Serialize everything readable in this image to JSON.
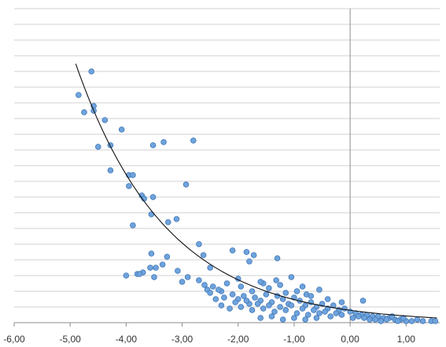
{
  "chart_data": {
    "type": "scatter",
    "title": "",
    "xlabel": "",
    "ylabel": "",
    "xlim": [
      -6.0,
      1.6
    ],
    "ylim": [
      0,
      20
    ],
    "x_ticks": [
      -6.0,
      -5.0,
      -4.0,
      -3.0,
      -2.0,
      -1.0,
      0.0,
      1.0
    ],
    "x_tick_labels": [
      "-6,00",
      "-5,00",
      "-4,00",
      "-3,00",
      "-2,00",
      "-1,00",
      "0,00",
      "1,00"
    ],
    "y_grid_step": 1,
    "grid": "horizontal",
    "legend": "none",
    "trendline": {
      "type": "exponential",
      "a": 0.79,
      "b": 0.62,
      "x_range": [
        -4.9,
        1.55
      ]
    },
    "colors": {
      "point_fill": "#6fa3dc",
      "point_edge": "#3f77b8",
      "trendline": "#111111",
      "grid": "#d0d0d0",
      "axis": "#8c8c8c"
    },
    "series": [
      {
        "points": [
          [
            -4.62,
            16.0
          ],
          [
            -4.85,
            14.5
          ],
          [
            -4.75,
            13.4
          ],
          [
            -4.58,
            13.8
          ],
          [
            -4.58,
            13.5
          ],
          [
            -4.38,
            12.9
          ],
          [
            -4.08,
            12.3
          ],
          [
            -4.5,
            11.2
          ],
          [
            -4.28,
            11.3
          ],
          [
            -3.52,
            11.3
          ],
          [
            -3.33,
            11.5
          ],
          [
            -2.8,
            11.6
          ],
          [
            -4.28,
            9.7
          ],
          [
            -3.95,
            9.4
          ],
          [
            -3.88,
            9.4
          ],
          [
            -3.95,
            8.7
          ],
          [
            -2.93,
            8.8
          ],
          [
            -3.72,
            8.1
          ],
          [
            -3.68,
            7.9
          ],
          [
            -3.52,
            8.0
          ],
          [
            -3.55,
            6.9
          ],
          [
            -3.1,
            6.6
          ],
          [
            -3.25,
            6.4
          ],
          [
            -3.88,
            6.2
          ],
          [
            -2.7,
            5.0
          ],
          [
            -3.55,
            4.4
          ],
          [
            -3.27,
            4.2
          ],
          [
            -2.62,
            4.3
          ],
          [
            -2.1,
            4.6
          ],
          [
            -1.85,
            4.5
          ],
          [
            -1.72,
            4.3
          ],
          [
            -1.8,
            3.9
          ],
          [
            -1.3,
            4.1
          ],
          [
            -2.5,
            3.5
          ],
          [
            -3.57,
            3.5
          ],
          [
            -3.47,
            3.5
          ],
          [
            -3.08,
            3.3
          ],
          [
            -3.35,
            3.7
          ],
          [
            -2.9,
            2.9
          ],
          [
            -3.7,
            3.2
          ],
          [
            -3.8,
            3.1
          ],
          [
            -3.76,
            3.1
          ],
          [
            -4.0,
            3.0
          ],
          [
            -3.5,
            2.9
          ],
          [
            -3.0,
            2.6
          ],
          [
            -2.7,
            2.7
          ],
          [
            -2.45,
            2.3
          ],
          [
            -2.55,
            2.1
          ],
          [
            -2.3,
            2.0
          ],
          [
            -2.2,
            2.5
          ],
          [
            -2.0,
            2.8
          ],
          [
            -1.95,
            2.3
          ],
          [
            -1.55,
            2.5
          ],
          [
            -1.32,
            2.7
          ],
          [
            -1.05,
            2.9
          ],
          [
            -0.85,
            2.3
          ],
          [
            -0.55,
            2.1
          ],
          [
            0.23,
            1.4
          ],
          [
            -0.78,
            1.8
          ],
          [
            -2.4,
            1.5
          ],
          [
            -2.25,
            1.6
          ],
          [
            -2.1,
            1.8
          ],
          [
            -2.0,
            1.5
          ],
          [
            -1.9,
            1.7
          ],
          [
            -1.8,
            1.2
          ],
          [
            -1.7,
            1.6
          ],
          [
            -1.6,
            1.4
          ],
          [
            -1.5,
            1.8
          ],
          [
            -1.4,
            1.3
          ],
          [
            -1.3,
            1.7
          ],
          [
            -1.2,
            1.5
          ],
          [
            -1.1,
            1.2
          ],
          [
            -1.0,
            1.6
          ],
          [
            -0.9,
            1.4
          ],
          [
            -0.8,
            1.1
          ],
          [
            -0.7,
            1.3
          ],
          [
            -0.6,
            1.0
          ],
          [
            -0.5,
            1.2
          ],
          [
            -0.4,
            0.9
          ],
          [
            -0.3,
            1.1
          ],
          [
            -0.2,
            0.8
          ],
          [
            -0.1,
            0.9
          ],
          [
            0.0,
            0.7
          ],
          [
            0.1,
            0.6
          ],
          [
            0.2,
            0.5
          ],
          [
            0.3,
            0.5
          ],
          [
            0.4,
            0.4
          ],
          [
            0.5,
            0.4
          ],
          [
            0.6,
            0.3
          ],
          [
            0.7,
            0.3
          ],
          [
            0.8,
            0.2
          ],
          [
            0.9,
            0.2
          ],
          [
            1.0,
            0.1
          ],
          [
            1.1,
            0.1
          ],
          [
            1.3,
            0.1
          ],
          [
            1.45,
            0.1
          ],
          [
            1.52,
            0.1
          ],
          [
            -2.3,
            1.1
          ],
          [
            -2.15,
            0.9
          ],
          [
            -1.95,
            1.0
          ],
          [
            -1.75,
            0.8
          ],
          [
            -1.55,
            0.9
          ],
          [
            -1.35,
            0.7
          ],
          [
            -1.15,
            0.8
          ],
          [
            -0.95,
            0.6
          ],
          [
            -0.75,
            0.5
          ],
          [
            -0.55,
            0.6
          ],
          [
            -0.35,
            0.4
          ],
          [
            -0.15,
            0.5
          ],
          [
            0.05,
            0.3
          ],
          [
            0.25,
            0.3
          ],
          [
            0.45,
            0.2
          ],
          [
            0.65,
            0.2
          ],
          [
            0.85,
            0.1
          ],
          [
            -1.6,
            0.3
          ],
          [
            -1.4,
            0.4
          ],
          [
            -1.2,
            0.2
          ],
          [
            -1.0,
            0.3
          ],
          [
            -0.8,
            0.2
          ],
          [
            -0.6,
            0.3
          ],
          [
            -2.05,
            1.3
          ],
          [
            -1.85,
            1.4
          ],
          [
            -1.65,
            1.2
          ],
          [
            -1.45,
            1.1
          ],
          [
            -1.25,
            1.0
          ],
          [
            -1.05,
            1.1
          ],
          [
            -0.85,
            0.9
          ],
          [
            -0.65,
            0.8
          ],
          [
            -0.45,
            0.7
          ],
          [
            -0.25,
            0.6
          ],
          [
            -2.5,
            1.9
          ],
          [
            -2.35,
            2.1
          ],
          [
            -1.75,
            2.0
          ],
          [
            -1.45,
            2.2
          ],
          [
            -1.15,
            1.9
          ],
          [
            -0.95,
            2.0
          ],
          [
            -0.4,
            1.5
          ],
          [
            -0.15,
            1.3
          ],
          [
            -2.6,
            2.4
          ],
          [
            -1.6,
            2.6
          ],
          [
            -1.25,
            2.4
          ],
          [
            -0.7,
            1.7
          ],
          [
            0.15,
            0.4
          ],
          [
            0.35,
            0.2
          ],
          [
            0.55,
            0.1
          ],
          [
            0.75,
            0.4
          ],
          [
            0.95,
            0.3
          ],
          [
            1.2,
            0.2
          ]
        ]
      }
    ]
  }
}
